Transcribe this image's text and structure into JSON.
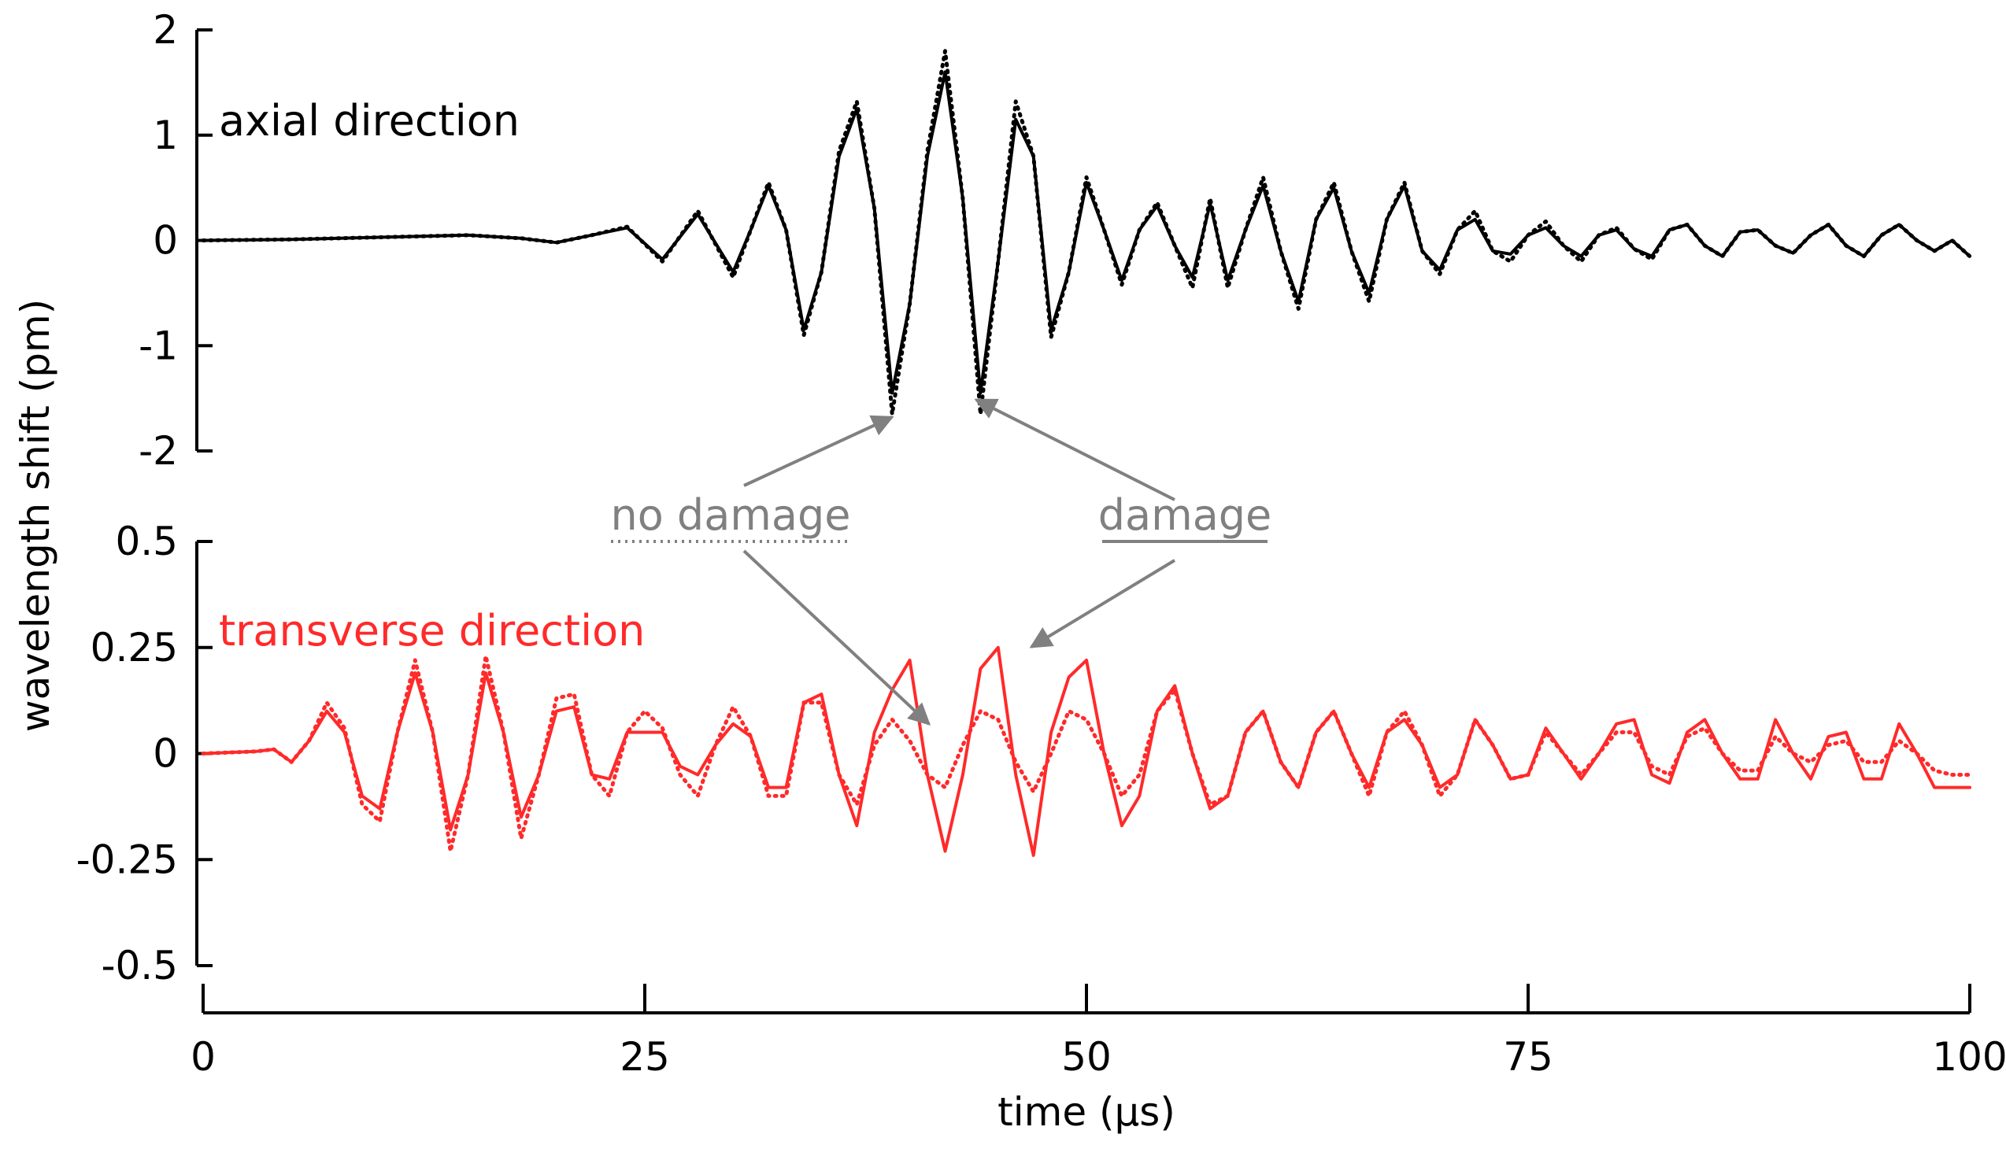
{
  "chart_data": [
    {
      "type": "line",
      "panel": "top",
      "panel_label": "axial direction",
      "color": "#000000",
      "ylim": [
        -2,
        2
      ],
      "y_ticks": [
        2,
        1,
        0,
        -1,
        -2
      ],
      "y_tick_labels": [
        "2",
        "1",
        "0",
        "-1",
        "-2"
      ],
      "series": [
        {
          "name": "damage",
          "style": "solid",
          "x": [
            0,
            5,
            10,
            15,
            18,
            20,
            22,
            24,
            26,
            28,
            30,
            31,
            32,
            33,
            34,
            35,
            36,
            37,
            38,
            39,
            40,
            41,
            42,
            43,
            44,
            45,
            46,
            47,
            48,
            49,
            50,
            51,
            52,
            53,
            54,
            55,
            56,
            57,
            58,
            59,
            60,
            61,
            62,
            63,
            64,
            65,
            66,
            67,
            68,
            69,
            70,
            71,
            72,
            73,
            74,
            75,
            76,
            77,
            78,
            79,
            80,
            81,
            82,
            83,
            84,
            85,
            86,
            87,
            88,
            89,
            90,
            91,
            92,
            93,
            94,
            95,
            96,
            97,
            98,
            99,
            100
          ],
          "y": [
            0,
            0.01,
            0.03,
            0.05,
            0.02,
            -0.02,
            0.05,
            0.12,
            -0.18,
            0.25,
            -0.3,
            0.1,
            0.52,
            0.1,
            -0.85,
            -0.3,
            0.8,
            1.25,
            0.3,
            -1.45,
            -0.6,
            0.8,
            1.6,
            0.4,
            -1.45,
            -0.2,
            1.15,
            0.8,
            -0.85,
            -0.3,
            0.55,
            0.1,
            -0.38,
            0.1,
            0.33,
            -0.05,
            -0.35,
            0.35,
            -0.38,
            0.1,
            0.52,
            -0.1,
            -0.58,
            0.2,
            0.5,
            -0.1,
            -0.5,
            0.2,
            0.52,
            -0.1,
            -0.28,
            0.1,
            0.2,
            -0.1,
            -0.13,
            0.05,
            0.12,
            -0.05,
            -0.15,
            0.05,
            0.1,
            -0.08,
            -0.15,
            0.1,
            0.15,
            -0.05,
            -0.15,
            0.08,
            0.1,
            -0.05,
            -0.12,
            0.05,
            0.15,
            -0.05,
            -0.15,
            0.05,
            0.15,
            0.0,
            -0.1,
            0.0,
            -0.15
          ]
        },
        {
          "name": "no damage",
          "style": "dotted",
          "x": [
            0,
            5,
            10,
            15,
            18,
            20,
            22,
            24,
            26,
            28,
            30,
            31,
            32,
            33,
            34,
            35,
            36,
            37,
            38,
            39,
            40,
            41,
            42,
            43,
            44,
            45,
            46,
            47,
            48,
            49,
            50,
            51,
            52,
            53,
            54,
            55,
            56,
            57,
            58,
            59,
            60,
            61,
            62,
            63,
            64,
            65,
            66,
            67,
            68,
            69,
            70,
            71,
            72,
            73,
            74,
            75,
            76,
            77,
            78,
            79,
            80,
            81,
            82,
            83,
            84,
            85,
            86,
            87,
            88,
            89,
            90,
            91,
            92,
            93,
            94,
            95,
            96,
            97,
            98,
            99,
            100
          ],
          "y": [
            0,
            0.01,
            0.03,
            0.05,
            0.02,
            -0.02,
            0.05,
            0.13,
            -0.2,
            0.28,
            -0.35,
            0.1,
            0.55,
            0.1,
            -0.9,
            -0.3,
            0.85,
            1.32,
            0.3,
            -1.65,
            -0.6,
            0.85,
            1.8,
            0.4,
            -1.65,
            -0.2,
            1.32,
            0.8,
            -0.92,
            -0.3,
            0.6,
            0.1,
            -0.42,
            0.1,
            0.36,
            -0.05,
            -0.45,
            0.4,
            -0.45,
            0.1,
            0.6,
            -0.1,
            -0.65,
            0.2,
            0.55,
            -0.1,
            -0.58,
            0.2,
            0.55,
            -0.1,
            -0.32,
            0.1,
            0.28,
            -0.1,
            -0.2,
            0.05,
            0.18,
            -0.05,
            -0.2,
            0.05,
            0.12,
            -0.08,
            -0.18,
            0.1,
            0.15,
            -0.05,
            -0.15,
            0.08,
            0.1,
            -0.05,
            -0.12,
            0.05,
            0.15,
            -0.05,
            -0.15,
            0.05,
            0.15,
            0.0,
            -0.1,
            0.0,
            -0.15
          ]
        }
      ]
    },
    {
      "type": "line",
      "panel": "bottom",
      "panel_label": "transverse direction",
      "color": "#ff2a2a",
      "ylim": [
        -0.5,
        0.5
      ],
      "y_ticks": [
        0.5,
        0.25,
        0,
        -0.25,
        -0.5
      ],
      "y_tick_labels": [
        "0.5",
        "0.25",
        "0",
        "-0.25",
        "-0.5"
      ],
      "series": [
        {
          "name": "damage",
          "style": "solid",
          "x": [
            0,
            3,
            4,
            5,
            6,
            7,
            8,
            9,
            10,
            11,
            12,
            13,
            14,
            15,
            16,
            17,
            18,
            19,
            20,
            21,
            22,
            23,
            24,
            25,
            26,
            27,
            28,
            29,
            30,
            31,
            32,
            33,
            34,
            35,
            36,
            37,
            38,
            39,
            40,
            41,
            42,
            43,
            44,
            45,
            46,
            47,
            48,
            49,
            50,
            51,
            52,
            53,
            54,
            55,
            56,
            57,
            58,
            59,
            60,
            61,
            62,
            63,
            64,
            65,
            66,
            67,
            68,
            69,
            70,
            71,
            72,
            73,
            74,
            75,
            76,
            77,
            78,
            79,
            80,
            81,
            82,
            83,
            84,
            85,
            86,
            87,
            88,
            89,
            90,
            91,
            92,
            93,
            94,
            95,
            96,
            97,
            98,
            99,
            100
          ],
          "y": [
            0,
            0.005,
            0.01,
            -0.02,
            0.03,
            0.1,
            0.05,
            -0.1,
            -0.13,
            0.05,
            0.19,
            0.05,
            -0.18,
            -0.05,
            0.19,
            0.05,
            -0.15,
            -0.05,
            0.1,
            0.11,
            -0.05,
            -0.06,
            0.05,
            0.05,
            0.05,
            -0.03,
            -0.05,
            0.02,
            0.07,
            0.04,
            -0.08,
            -0.08,
            0.12,
            0.14,
            -0.05,
            -0.17,
            0.05,
            0.15,
            0.22,
            -0.05,
            -0.23,
            -0.05,
            0.2,
            0.25,
            -0.05,
            -0.24,
            0.05,
            0.18,
            0.22,
            0.0,
            -0.17,
            -0.1,
            0.1,
            0.16,
            0.0,
            -0.13,
            -0.1,
            0.05,
            0.1,
            -0.02,
            -0.08,
            0.05,
            0.1,
            0.0,
            -0.08,
            0.05,
            0.08,
            0.02,
            -0.08,
            -0.05,
            0.08,
            0.02,
            -0.06,
            -0.05,
            0.06,
            0.0,
            -0.06,
            0.0,
            0.07,
            0.08,
            -0.05,
            -0.07,
            0.05,
            0.08,
            0.0,
            -0.06,
            -0.06,
            0.08,
            0.0,
            -0.06,
            0.04,
            0.05,
            -0.06,
            -0.06,
            0.07,
            0.0,
            -0.08,
            -0.08,
            -0.08
          ],
          "x_note": ""
        },
        {
          "name": "no damage",
          "style": "dotted",
          "x": [
            0,
            3,
            4,
            5,
            6,
            7,
            8,
            9,
            10,
            11,
            12,
            13,
            14,
            15,
            16,
            17,
            18,
            19,
            20,
            21,
            22,
            23,
            24,
            25,
            26,
            27,
            28,
            29,
            30,
            31,
            32,
            33,
            34,
            35,
            36,
            37,
            38,
            39,
            40,
            41,
            42,
            43,
            44,
            45,
            46,
            47,
            48,
            49,
            50,
            51,
            52,
            53,
            54,
            55,
            56,
            57,
            58,
            59,
            60,
            61,
            62,
            63,
            64,
            65,
            66,
            67,
            68,
            69,
            70,
            71,
            72,
            73,
            74,
            75,
            76,
            77,
            78,
            79,
            80,
            81,
            82,
            83,
            84,
            85,
            86,
            87,
            88,
            89,
            90,
            91,
            92,
            93,
            94,
            95,
            96,
            97,
            98,
            99,
            100
          ],
          "y": [
            0,
            0.005,
            0.01,
            -0.02,
            0.03,
            0.12,
            0.06,
            -0.12,
            -0.16,
            0.05,
            0.22,
            0.05,
            -0.23,
            -0.05,
            0.23,
            0.05,
            -0.2,
            -0.05,
            0.13,
            0.14,
            -0.05,
            -0.1,
            0.05,
            0.1,
            0.06,
            -0.05,
            -0.1,
            0.02,
            0.11,
            0.04,
            -0.1,
            -0.1,
            0.12,
            0.12,
            -0.05,
            -0.12,
            0.02,
            0.08,
            0.03,
            -0.05,
            -0.08,
            0.02,
            0.1,
            0.08,
            -0.02,
            -0.09,
            0.0,
            0.1,
            0.08,
            0.0,
            -0.1,
            -0.05,
            0.1,
            0.15,
            0.0,
            -0.12,
            -0.1,
            0.05,
            0.1,
            -0.02,
            -0.08,
            0.05,
            0.1,
            0.0,
            -0.1,
            0.05,
            0.1,
            0.02,
            -0.1,
            -0.05,
            0.08,
            0.02,
            -0.06,
            -0.05,
            0.05,
            0.0,
            -0.05,
            0.0,
            0.05,
            0.05,
            -0.03,
            -0.05,
            0.04,
            0.06,
            0.0,
            -0.04,
            -0.04,
            0.04,
            0.0,
            -0.02,
            0.02,
            0.03,
            -0.02,
            -0.02,
            0.03,
            0.0,
            -0.04,
            -0.05,
            -0.05
          ]
        }
      ]
    }
  ],
  "x_axis": {
    "label": "time (µs)",
    "ticks": [
      0,
      25,
      50,
      75,
      100
    ],
    "tick_labels": [
      "0",
      "25",
      "50",
      "75",
      "100"
    ],
    "xlim": [
      0,
      100
    ]
  },
  "y_axis": {
    "label": "wavelength shift (pm)"
  },
  "annotations": {
    "no_damage_label": "no damage",
    "damage_label": "damage",
    "arrow_color": "#808080"
  }
}
